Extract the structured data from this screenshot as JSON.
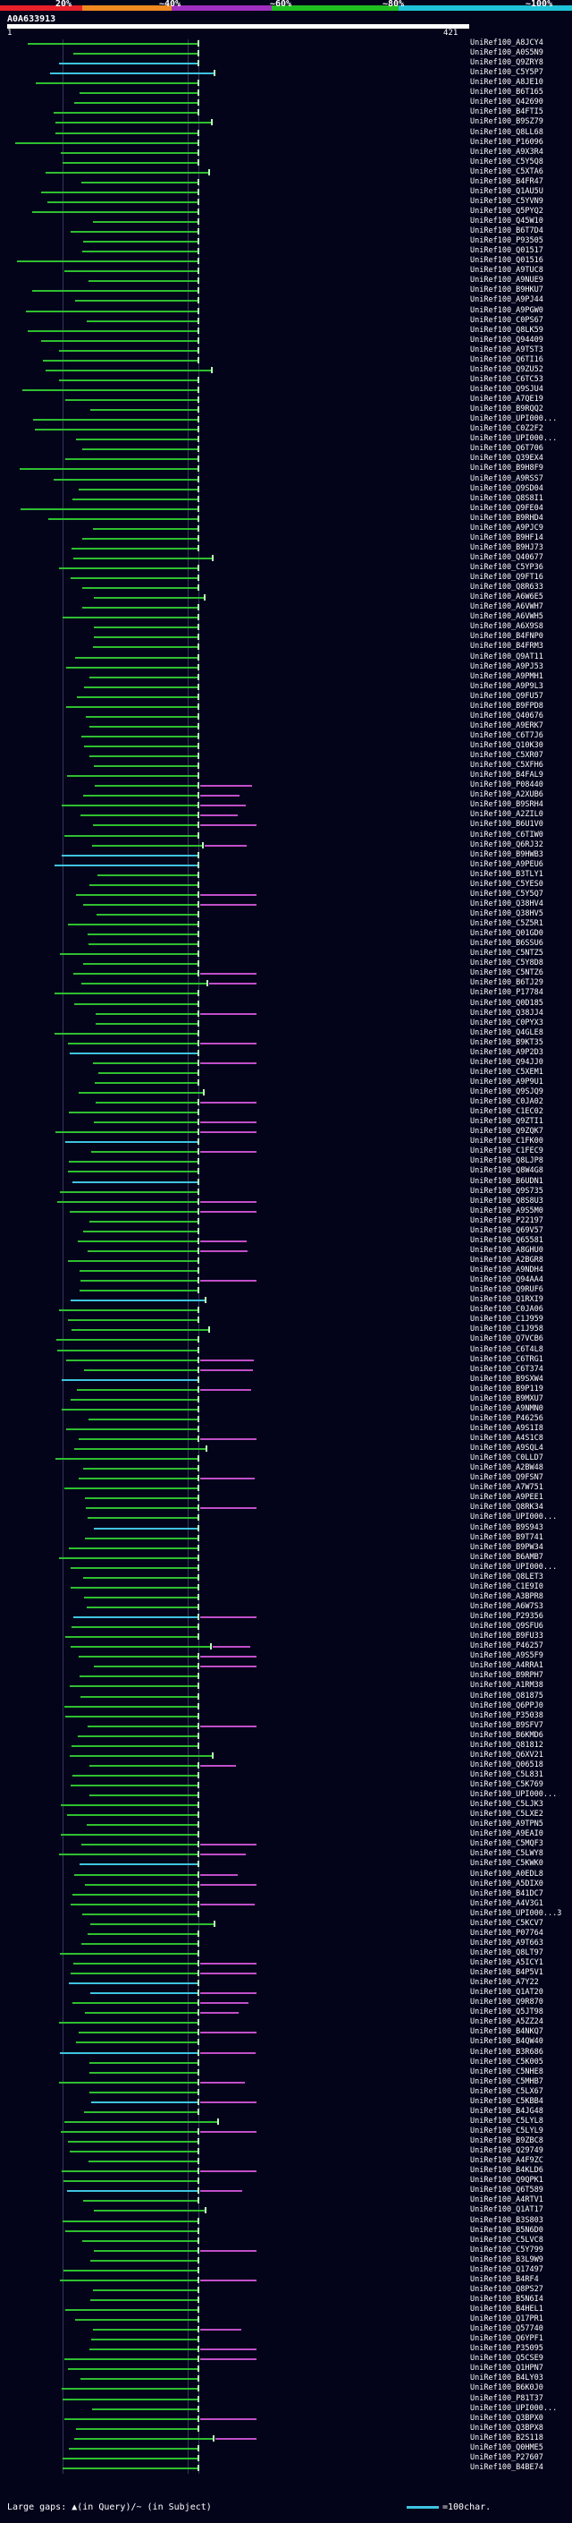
{
  "scale": {
    "labels": [
      "20%",
      "~40%",
      "~60%",
      "~80%",
      "~100%"
    ],
    "colors": [
      "#e8202a",
      "#ee8a1f",
      "#a02fc0",
      "#1fbf1f",
      "#1fc3d8"
    ]
  },
  "query": {
    "name": "A0A633913",
    "start": "1",
    "end": "421"
  },
  "legend": {
    "gaps": "Large gaps: ▲(in Query)/~ (in Subject)",
    "scale_note": "=100char."
  },
  "hits": [
    "UniRef100_A8JCY4",
    "UniRef100_A0S5N9",
    "UniRef100_Q9ZRY8",
    "UniRef100_C5Y5P7",
    "UniRef100_A8JE10",
    "UniRef100_B6T165",
    "UniRef100_Q42690",
    "UniRef100_B4FTI5",
    "UniRef100_B9SZ79",
    "UniRef100_Q8LL68",
    "UniRef100_P16096",
    "UniRef100_A9X3R4",
    "UniRef100_C5Y5Q8",
    "UniRef100_C5XTA6",
    "UniRef100_B4FR47",
    "UniRef100_Q1AU5U",
    "UniRef100_C5YVN9",
    "UniRef100_Q5PYQ2",
    "UniRef100_Q45W10",
    "UniRef100_B6T7D4",
    "UniRef100_P93505",
    "UniRef100_Q01517",
    "UniRef100_Q01516",
    "UniRef100_A9TUC8",
    "UniRef100_A9NUE9",
    "UniRef100_B9HKU7",
    "UniRef100_A9PJ44",
    "UniRef100_A9PGW0",
    "UniRef100_C0PS67",
    "UniRef100_Q8LK59",
    "UniRef100_Q94409",
    "UniRef100_A9TST3",
    "UniRef100_Q6TI16",
    "UniRef100_Q9ZU52",
    "UniRef100_C6TC53",
    "UniRef100_Q9SJU4",
    "UniRef100_A7QE19",
    "UniRef100_B9RQQ2",
    "UniRef100_UPI000...",
    "UniRef100_C0Z2F2",
    "UniRef100_UPI000...",
    "UniRef100_Q6T706",
    "UniRef100_Q39EX4",
    "UniRef100_B9H8F9",
    "UniRef100_A9RSS7",
    "UniRef100_Q9SD04",
    "UniRef100_Q8S8I1",
    "UniRef100_Q9FE04",
    "UniRef100_B9RHD4",
    "UniRef100_A9PJC9",
    "UniRef100_B9HF14",
    "UniRef100_B9HJ73",
    "UniRef100_Q40677",
    "UniRef100_C5YP36",
    "UniRef100_Q9FT16",
    "UniRef100_Q8R633",
    "UniRef100_A6W6E5",
    "UniRef100_A6VWH7",
    "UniRef100_A6VWH5",
    "UniRef100_A6X9S8",
    "UniRef100_B4FNP0",
    "UniRef100_B4FRM3",
    "UniRef100_Q9AT11",
    "UniRef100_A9PJ53",
    "UniRef100_A9PMH1",
    "UniRef100_A9P9L3",
    "UniRef100_Q9FU57",
    "UniRef100_B9FPD8",
    "UniRef100_Q40676",
    "UniRef100_A9ERK7",
    "UniRef100_C6T7J6",
    "UniRef100_Q10K30",
    "UniRef100_C5XR07",
    "UniRef100_C5XFH6",
    "UniRef100_B4FAL9",
    "UniRef100_P08440",
    "UniRef100_A2XUB6",
    "UniRef100_B9SRH4",
    "UniRef100_A2ZIL0",
    "UniRef100_B6U1V0",
    "UniRef100_C6TIW0",
    "UniRef100_Q6RJ32",
    "UniRef100_B9HWB3",
    "UniRef100_A9PEU6",
    "UniRef100_B3TLY1",
    "UniRef100_C5YES0",
    "UniRef100_C5Y5Q7",
    "UniRef100_Q38HV4",
    "UniRef100_Q38HV5",
    "UniRef100_C5Z5R1",
    "UniRef100_Q01GD0",
    "UniRef100_B6SSU6",
    "UniRef100_C5NTZ5",
    "UniRef100_C5Y8D8",
    "UniRef100_C5NTZ6",
    "UniRef100_B6TJ29",
    "UniRef100_P17784",
    "UniRef100_Q0D185",
    "UniRef100_Q38JJ4",
    "UniRef100_C0PYX3",
    "UniRef100_Q4GLE8",
    "UniRef100_B9KT35",
    "UniRef100_A9P2D3",
    "UniRef100_Q94JJ0",
    "UniRef100_C5XEM1",
    "UniRef100_A9P9U1",
    "UniRef100_Q9SJQ9",
    "UniRef100_C0JA02",
    "UniRef100_C1EC02",
    "UniRef100_Q9ZTI1",
    "UniRef100_Q9ZQK7",
    "UniRef100_C1FK00",
    "UniRef100_C1FEC9",
    "UniRef100_Q8LJP8",
    "UniRef100_Q8W4G8",
    "UniRef100_B6UDN1",
    "UniRef100_Q9S735",
    "UniRef100_Q8S8U3",
    "UniRef100_A9S5M0",
    "UniRef100_P22197",
    "UniRef100_Q69V57",
    "UniRef100_Q65581",
    "UniRef100_A8GHU0",
    "UniRef100_A2BGR8",
    "UniRef100_A9NDH4",
    "UniRef100_Q94AA4",
    "UniRef100_Q9RUF6",
    "UniRef100_Q1RXI9",
    "UniRef100_C0JA06",
    "UniRef100_C1J959",
    "UniRef100_C1J958",
    "UniRef100_Q7VCB6",
    "UniRef100_C6T4L8",
    "UniRef100_C6TRG1",
    "UniRef100_C6T374",
    "UniRef100_B9SXW4",
    "UniRef100_B9P119",
    "UniRef100_B9MXU7",
    "UniRef100_A9NMN0",
    "UniRef100_P46256",
    "UniRef100_A9S1I8",
    "UniRef100_A4S1C8",
    "UniRef100_A9SQL4",
    "UniRef100_C0LLD7",
    "UniRef100_A2BW48",
    "UniRef100_Q9FSN7",
    "UniRef100_A7W751",
    "UniRef100_A9PEE1",
    "UniRef100_Q8RK34",
    "UniRef100_UPI000...",
    "UniRef100_B9S943",
    "UniRef100_B9T741",
    "UniRef100_B9PW34",
    "UniRef100_B6AMB7",
    "UniRef100_UPI000...",
    "UniRef100_Q8LET3",
    "UniRef100_C1E9I0",
    "UniRef100_A3BPR8",
    "UniRef100_A6W7S3",
    "UniRef100_P29356",
    "UniRef100_Q9SFU6",
    "UniRef100_B9FU33",
    "UniRef100_P46257",
    "UniRef100_A9S5F9",
    "UniRef100_A4RRA1",
    "UniRef100_B9RPH7",
    "UniRef100_A1RM38",
    "UniRef100_Q81875",
    "UniRef100_Q6PPJ0",
    "UniRef100_P35038",
    "UniRef100_B9SFV7",
    "UniRef100_B6KMD6",
    "UniRef100_Q81812",
    "UniRef100_Q6XV21",
    "UniRef100_Q06518",
    "UniRef100_C5L831",
    "UniRef100_C5K769",
    "UniRef100_UPI000...",
    "UniRef100_C5LJK3",
    "UniRef100_C5LXE2",
    "UniRef100_A9TPN5",
    "UniRef100_A9EAI0",
    "UniRef100_C5MQF3",
    "UniRef100_C5LWY8",
    "UniRef100_C5KWK0",
    "UniRef100_A0EDL8",
    "UniRef100_A5DIX0",
    "UniRef100_B41DC7",
    "UniRef100_A4V3G1",
    "UniRef100_UPI000...3",
    "UniRef100_C5KCV7",
    "UniRef100_P07764",
    "UniRef100_A9T663",
    "UniRef100_Q8LT97",
    "UniRef100_A5ICY1",
    "UniRef100_B4P5V1",
    "UniRef100_A7Y22",
    "UniRef100_Q1AT20",
    "UniRef100_Q9R870",
    "UniRef100_Q5JT98",
    "UniRef100_A5ZZ24",
    "UniRef100_B4NKQ7",
    "UniRef100_B4QW40",
    "UniRef100_B3R686",
    "UniRef100_C5K005",
    "UniRef100_C5NHE8",
    "UniRef100_C5MHB7",
    "UniRef100_C5LX67",
    "UniRef100_C5KBB4",
    "UniRef100_B4JG48",
    "UniRef100_C5LYL8",
    "UniRef100_C5LYL9",
    "UniRef100_B9ZBC8",
    "UniRef100_Q29749",
    "UniRef100_A4F9ZC",
    "UniRef100_B4KLD6",
    "UniRef100_Q9QPK1",
    "UniRef100_Q6T589",
    "UniRef100_A4RTV1",
    "UniRef100_Q1AT17",
    "UniRef100_B3S803",
    "UniRef100_B5N6D0",
    "UniRef100_C5LVC8",
    "UniRef100_C5Y799",
    "UniRef100_B3L9W9",
    "UniRef100_Q17497",
    "UniRef100_B4RF4",
    "UniRef100_Q8PS27",
    "UniRef100_B5N6I4",
    "UniRef100_B4HEL1",
    "UniRef100_Q17PR1",
    "UniRef100_Q57740",
    "UniRef100_Q6YPF1",
    "UniRef100_P35095",
    "UniRef100_Q5CSE9",
    "UniRef100_Q1HPN7",
    "UniRef100_B4LY03",
    "UniRef100_B6K0J0",
    "UniRef100_P81T37",
    "UniRef100_UPI000...",
    "UniRef100_Q3BPX0",
    "UniRef100_Q3BPX8",
    "UniRef100_B2S118",
    "UniRef100_Q0HME5",
    "UniRef100_P27607",
    "UniRef100_B4BE74"
  ]
}
